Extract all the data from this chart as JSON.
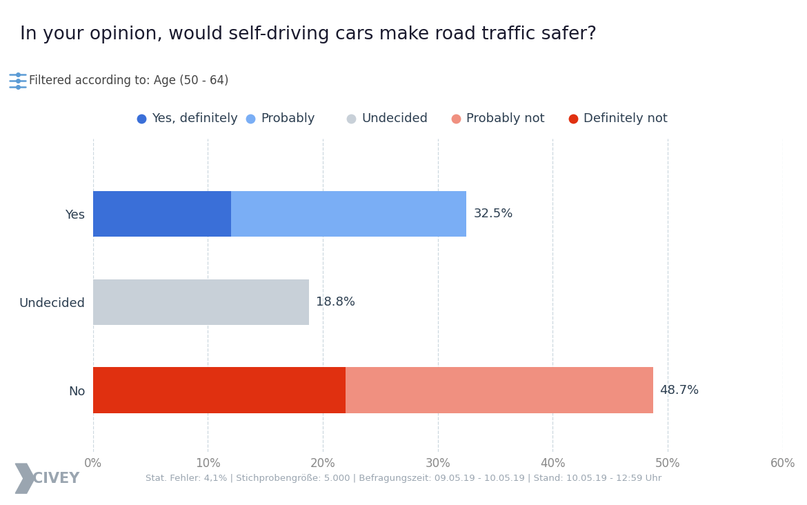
{
  "title": "In your opinion, would self-driving cars make road traffic safer?",
  "filter_text": "Filtered according to: Age (50 - 64)",
  "footer_text": "Stat. Fehler: 4,1% | Stichprobengröße: 5.000 | Befragungszeit: 09.05.19 - 10.05.19 | Stand: 10.05.19 - 12:59 Uhr",
  "categories": [
    "Yes",
    "Undecided",
    "No"
  ],
  "segments": {
    "Yes": [
      {
        "label": "Yes, definitely",
        "value": 12.0,
        "color": "#3a6fd8"
      },
      {
        "label": "Probably",
        "value": 20.5,
        "color": "#7aaef5"
      }
    ],
    "Undecided": [
      {
        "label": "Undecided",
        "value": 18.8,
        "color": "#c8d0d8"
      }
    ],
    "No": [
      {
        "label": "Definitely not",
        "value": 22.0,
        "color": "#e03010"
      },
      {
        "label": "Probably not",
        "value": 26.7,
        "color": "#f09080"
      }
    ]
  },
  "totals": {
    "Yes": "32.5%",
    "Undecided": "18.8%",
    "No": "48.7%"
  },
  "xlim": [
    0,
    60
  ],
  "xticks": [
    0,
    10,
    20,
    30,
    40,
    50,
    60
  ],
  "xtick_labels": [
    "0%",
    "10%",
    "20%",
    "30%",
    "40%",
    "50%",
    "60%"
  ],
  "legend_items": [
    {
      "label": "Yes, definitely",
      "color": "#3a6fd8"
    },
    {
      "label": "Probably",
      "color": "#7aaef5"
    },
    {
      "label": "Undecided",
      "color": "#c8d0d8"
    },
    {
      "label": "Probably not",
      "color": "#f09080"
    },
    {
      "label": "Definitely not",
      "color": "#e03010"
    }
  ],
  "bar_height": 0.52,
  "background_color": "#ffffff",
  "footer_bg_color": "#e4e8ec",
  "title_fontsize": 19,
  "label_fontsize": 13,
  "tick_fontsize": 12,
  "legend_fontsize": 13,
  "filter_fontsize": 12,
  "total_label_fontsize": 13,
  "grid_color": "#c8d4dc",
  "title_color": "#1a1a2e",
  "text_color": "#2c3e50",
  "separator_color": "#d0d8e0"
}
